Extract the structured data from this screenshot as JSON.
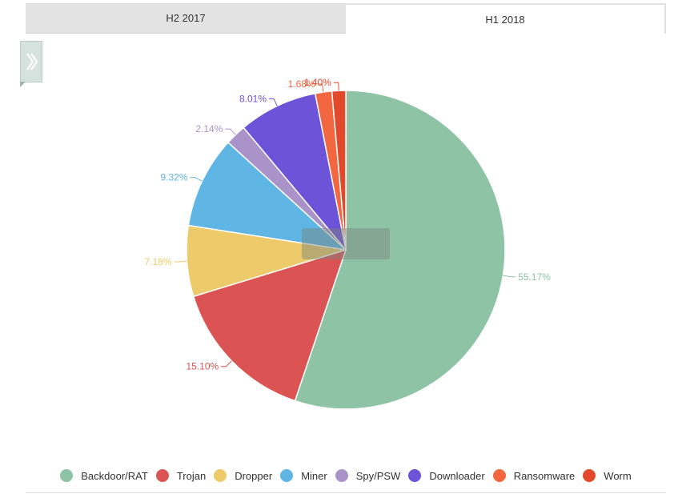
{
  "tabs": [
    {
      "label": "H2 2017",
      "active": false
    },
    {
      "label": "H1 2018",
      "active": true
    }
  ],
  "toggle_icon": "double-chevron-right-icon",
  "chart_data": {
    "type": "pie",
    "title": "",
    "start_angle_deg": 0,
    "direction": "clockwise",
    "slices": [
      {
        "name": "Backdoor/RAT",
        "value": 55.17,
        "label": "55.17%",
        "color": "#8ec3a6"
      },
      {
        "name": "Trojan",
        "value": 15.1,
        "label": "15.10%",
        "color": "#db5353"
      },
      {
        "name": "Dropper",
        "value": 7.18,
        "label": "7.18%",
        "color": "#eecb6a"
      },
      {
        "name": "Miner",
        "value": 9.32,
        "label": "9.32%",
        "color": "#5fb5e4"
      },
      {
        "name": "Spy/PSW",
        "value": 2.14,
        "label": "2.14%",
        "color": "#a993c9"
      },
      {
        "name": "Downloader",
        "value": 8.01,
        "label": "8.01%",
        "color": "#6d53d8"
      },
      {
        "name": "Ransomware",
        "value": 1.68,
        "label": "1.68%",
        "color": "#f2673f"
      },
      {
        "name": "Worm",
        "value": 1.4,
        "label": "1.40%",
        "color": "#e2492b"
      }
    ],
    "legend_position": "bottom"
  }
}
